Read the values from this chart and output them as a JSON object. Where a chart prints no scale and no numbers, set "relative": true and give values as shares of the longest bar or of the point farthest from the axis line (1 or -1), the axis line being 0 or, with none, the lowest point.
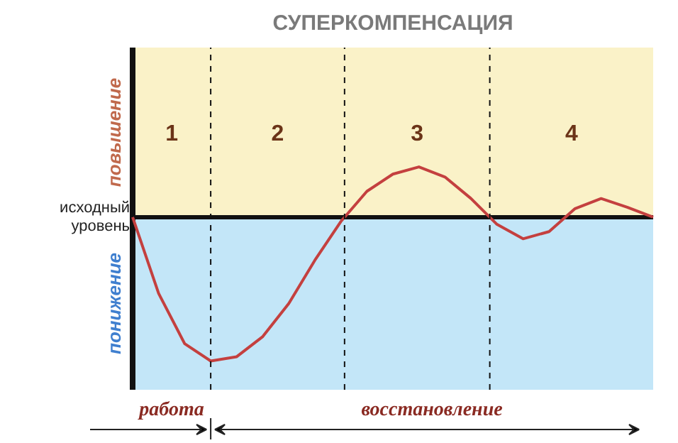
{
  "chart_data": {
    "type": "line",
    "title": "СУПЕРКОМПЕНСАЦИЯ",
    "relative": true,
    "marker": "none",
    "line_style": "solid",
    "categories": [
      null,
      null,
      null,
      null,
      null,
      null,
      null,
      null,
      null,
      null,
      null,
      null,
      null,
      null,
      null,
      null,
      null,
      null,
      null,
      null,
      null
    ],
    "series": [
      {
        "color": "#c4403f",
        "values": [
          0,
          -0.53,
          -0.88,
          -1,
          -0.97,
          -0.83,
          -0.6,
          -0.3,
          -0.03,
          0.18,
          0.3,
          0.35,
          0.28,
          0.13,
          -0.05,
          -0.15,
          -0.1,
          0.06,
          0.13,
          0.07,
          0
        ]
      }
    ],
    "bands": [
      {
        "axis": "y",
        "from": 0,
        "to": 1.18,
        "label": "повышение",
        "color": "#faf2c8"
      },
      {
        "axis": "y",
        "from": -1.2,
        "to": 0,
        "label": "понижение",
        "color": "#c3e6f8"
      }
    ],
    "ref_lines": [
      {
        "axis": "y",
        "value": 0,
        "label": "исходный уровень",
        "color": "#111111",
        "line_style": "solid"
      }
    ],
    "annotations": [
      "1",
      "2",
      "3",
      "4",
      "работа",
      "восстановление"
    ]
  }
}
